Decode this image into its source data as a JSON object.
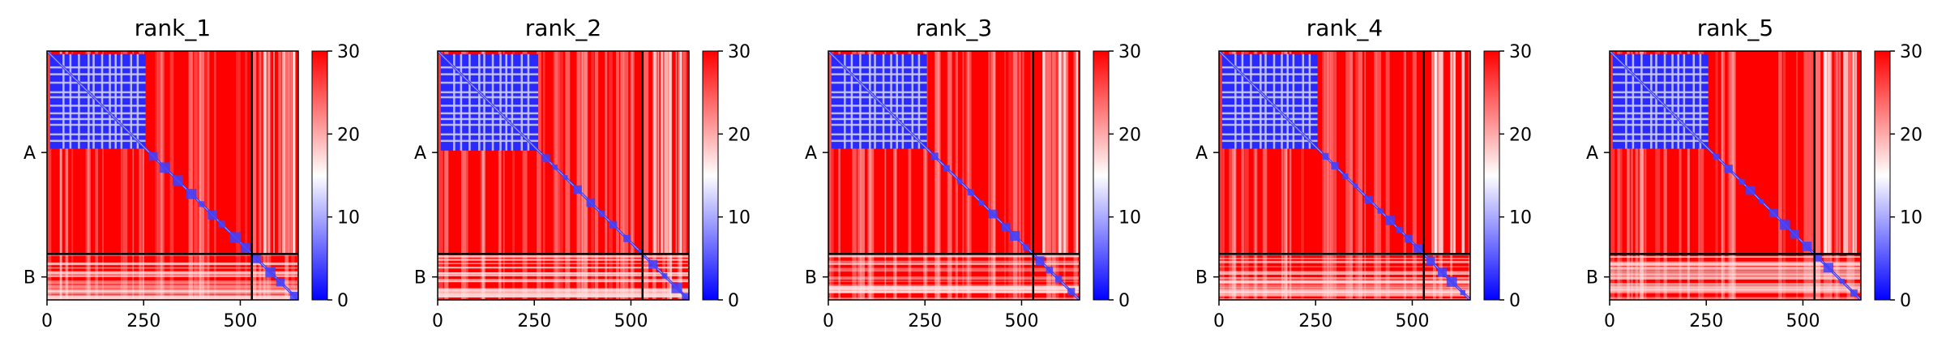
{
  "figure": {
    "description": "PAE (predicted aligned error) heatmaps for 5 model ranks, two chains A and B",
    "colormap": {
      "low": "#0000ff",
      "mid": "#ffffff",
      "high": "#ff0000"
    }
  },
  "chart_data": [
    {
      "type": "heatmap",
      "title": "rank_1",
      "x_ticks": [
        0,
        250,
        500
      ],
      "y_chain_labels": [
        "A",
        "B"
      ],
      "chain_boundary": 530,
      "total_length": 650,
      "xlim": [
        0,
        650
      ],
      "colorbar": {
        "min": 0,
        "max": 30,
        "ticks": [
          0,
          10,
          20,
          30
        ]
      },
      "blue_block_extent": 255
    },
    {
      "type": "heatmap",
      "title": "rank_2",
      "x_ticks": [
        0,
        250,
        500
      ],
      "y_chain_labels": [
        "A",
        "B"
      ],
      "chain_boundary": 530,
      "total_length": 650,
      "xlim": [
        0,
        650
      ],
      "colorbar": {
        "min": 0,
        "max": 30,
        "ticks": [
          0,
          10,
          20,
          30
        ]
      },
      "blue_block_extent": 260
    },
    {
      "type": "heatmap",
      "title": "rank_3",
      "x_ticks": [
        0,
        250,
        500
      ],
      "y_chain_labels": [
        "A",
        "B"
      ],
      "chain_boundary": 530,
      "total_length": 650,
      "xlim": [
        0,
        650
      ],
      "colorbar": {
        "min": 0,
        "max": 30,
        "ticks": [
          0,
          10,
          20,
          30
        ]
      },
      "blue_block_extent": 255
    },
    {
      "type": "heatmap",
      "title": "rank_4",
      "x_ticks": [
        0,
        250,
        500
      ],
      "y_chain_labels": [
        "A",
        "B"
      ],
      "chain_boundary": 530,
      "total_length": 650,
      "xlim": [
        0,
        650
      ],
      "colorbar": {
        "min": 0,
        "max": 30,
        "ticks": [
          0,
          10,
          20,
          30
        ]
      },
      "blue_block_extent": 255
    },
    {
      "type": "heatmap",
      "title": "rank_5",
      "x_ticks": [
        0,
        250,
        500
      ],
      "y_chain_labels": [
        "A",
        "B"
      ],
      "chain_boundary": 530,
      "total_length": 650,
      "xlim": [
        0,
        650
      ],
      "colorbar": {
        "min": 0,
        "max": 30,
        "ticks": [
          0,
          10,
          20,
          30
        ]
      },
      "blue_block_extent": 255
    }
  ]
}
